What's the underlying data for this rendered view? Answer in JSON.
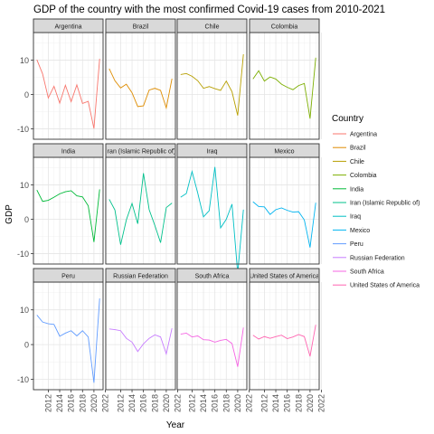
{
  "chart_data": {
    "type": "line",
    "title": "GDP of the country with the most confirmed Covid-19 cases from 2010-2021",
    "xlabel": "Year",
    "ylabel": "GDP",
    "x": [
      2010,
      2011,
      2012,
      2013,
      2014,
      2015,
      2016,
      2017,
      2018,
      2019,
      2020,
      2021
    ],
    "xticks": [
      2012,
      2014,
      2016,
      2018,
      2020,
      2022
    ],
    "yticks": [
      -10,
      0,
      10
    ],
    "xlim": [
      2009.4,
      2021.6
    ],
    "ylim": [
      -13,
      18
    ],
    "grid": true,
    "facet_layout": "3x4",
    "legend_title": "Country",
    "legend_position": "right",
    "series": [
      {
        "name": "Argentina",
        "color": "#F8766D",
        "values": [
          10.1,
          6.0,
          -1.0,
          2.4,
          -2.5,
          2.7,
          -2.1,
          2.8,
          -2.6,
          -2.0,
          -9.9,
          10.4
        ]
      },
      {
        "name": "Brazil",
        "color": "#DE8C00",
        "values": [
          7.5,
          4.0,
          1.9,
          3.0,
          0.5,
          -3.5,
          -3.3,
          1.3,
          1.8,
          1.2,
          -3.9,
          4.6
        ]
      },
      {
        "name": "Chile",
        "color": "#B79F00",
        "values": [
          5.8,
          6.1,
          5.3,
          4.0,
          1.8,
          2.3,
          1.7,
          1.2,
          3.9,
          0.8,
          -6.1,
          11.7
        ]
      },
      {
        "name": "Colombia",
        "color": "#7CAE00",
        "values": [
          4.5,
          6.9,
          3.9,
          5.1,
          4.5,
          3.0,
          2.1,
          1.4,
          2.6,
          3.2,
          -7.0,
          10.7
        ]
      },
      {
        "name": "India",
        "color": "#00BA38",
        "values": [
          8.5,
          5.2,
          5.5,
          6.4,
          7.4,
          8.0,
          8.3,
          6.8,
          6.5,
          3.9,
          -6.6,
          8.7
        ]
      },
      {
        "name": "Iran (Islamic Republic of)",
        "color": "#00C08B",
        "values": [
          5.8,
          2.7,
          -7.4,
          -0.2,
          4.6,
          -1.3,
          13.4,
          2.8,
          -1.8,
          -6.8,
          3.4,
          4.7
        ]
      },
      {
        "name": "Iraq",
        "color": "#00BFC4",
        "values": [
          6.4,
          7.5,
          13.9,
          7.6,
          0.7,
          2.5,
          15.2,
          -2.5,
          0.0,
          4.4,
          -15.7,
          2.8
        ]
      },
      {
        "name": "Mexico",
        "color": "#00B4F0",
        "values": [
          5.1,
          3.7,
          3.6,
          1.4,
          2.8,
          3.3,
          2.6,
          2.1,
          2.2,
          -0.2,
          -8.2,
          4.8
        ]
      },
      {
        "name": "Peru",
        "color": "#619CFF",
        "values": [
          8.5,
          6.5,
          6.0,
          5.8,
          2.4,
          3.3,
          4.0,
          2.5,
          4.0,
          2.2,
          -11.0,
          13.3
        ]
      },
      {
        "name": "Russian Federation",
        "color": "#C77CFF",
        "values": [
          4.5,
          4.3,
          4.0,
          1.8,
          0.7,
          -2.0,
          0.2,
          1.8,
          2.8,
          2.2,
          -2.7,
          4.7
        ]
      },
      {
        "name": "South Africa",
        "color": "#F564E3",
        "values": [
          3.0,
          3.3,
          2.2,
          2.5,
          1.4,
          1.3,
          0.7,
          1.2,
          1.5,
          0.3,
          -6.4,
          4.9
        ]
      },
      {
        "name": "United States of America",
        "color": "#FF64B0",
        "values": [
          2.7,
          1.6,
          2.3,
          1.8,
          2.3,
          2.7,
          1.7,
          2.2,
          2.9,
          2.3,
          -3.4,
          5.7
        ]
      }
    ]
  }
}
